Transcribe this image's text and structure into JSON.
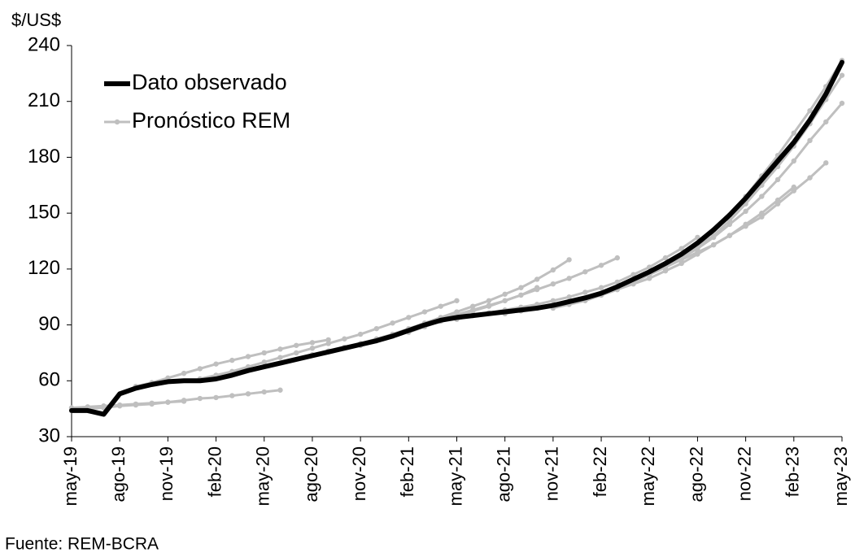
{
  "chart_data": {
    "type": "line",
    "y_label": "$/US$",
    "source": "Fuente: REM-BCRA",
    "legend": "upper left",
    "categories": [
      "may-19",
      null,
      null,
      "ago-19",
      null,
      null,
      "nov-19",
      null,
      null,
      "feb-20",
      null,
      null,
      "may-20",
      null,
      null,
      "ago-20",
      null,
      null,
      "nov-20",
      null,
      null,
      "feb-21",
      null,
      null,
      "may-21",
      null,
      null,
      "ago-21",
      null,
      null,
      "nov-21",
      null,
      null,
      "feb-22",
      null,
      null,
      "may-22",
      null,
      null,
      "ago-22",
      null,
      null,
      "nov-22",
      null,
      null,
      "feb-23",
      null,
      null,
      "may-23"
    ],
    "ylim": [
      30,
      240
    ],
    "yticks": [
      30,
      60,
      90,
      120,
      150,
      180,
      210,
      240
    ],
    "series": [
      {
        "name": "Pronóstico REM",
        "color": "#bfbfbf",
        "values": [
          44,
          45,
          45.5,
          46.5,
          47,
          47.5,
          48.5,
          49.5,
          50.5,
          51,
          52,
          53,
          54,
          55,
          null,
          null,
          null,
          null,
          null,
          null,
          null,
          null,
          null,
          null,
          null,
          null,
          null,
          null,
          null,
          null,
          null,
          null,
          null,
          null,
          null,
          null,
          null,
          null,
          null,
          null,
          null,
          null,
          null,
          null,
          null,
          null,
          null,
          null,
          null
        ]
      },
      {
        "color": "#bfbfbf",
        "values": [
          45.5,
          46,
          46.5,
          47,
          47.5,
          48,
          48.5,
          49,
          null,
          null,
          null,
          null,
          null,
          null,
          null,
          null,
          null,
          null,
          null,
          null,
          null,
          null,
          null,
          null,
          null,
          null,
          null,
          null,
          null,
          null,
          null,
          null,
          null,
          null,
          null,
          null,
          null,
          null,
          null,
          null,
          null,
          null,
          null,
          null,
          null,
          null,
          null,
          null,
          null
        ]
      },
      {
        "color": "#bfbfbf",
        "values": [
          null,
          null,
          null,
          null,
          57,
          59,
          61.5,
          64,
          66.5,
          69,
          71,
          73,
          75,
          77,
          79,
          80.5,
          82,
          null,
          null,
          null,
          null,
          null,
          null,
          null,
          null,
          null,
          null,
          null,
          null,
          null,
          null,
          null,
          null,
          null,
          null,
          null,
          null,
          null,
          null,
          null,
          null,
          null,
          null,
          null,
          null,
          null,
          null,
          null,
          null
        ]
      },
      {
        "color": "#bfbfbf",
        "values": [
          null,
          null,
          null,
          null,
          null,
          null,
          null,
          null,
          61,
          63,
          65,
          67.5,
          70,
          72.5,
          75,
          77.5,
          80,
          82.5,
          85,
          88,
          91,
          94,
          97,
          100,
          103,
          null,
          null,
          null,
          null,
          null,
          null,
          null,
          null,
          null,
          null,
          null,
          null,
          null,
          null,
          null,
          null,
          null,
          null,
          null,
          null,
          null,
          null,
          null,
          null
        ]
      },
      {
        "color": "#bfbfbf",
        "values": [
          null,
          null,
          null,
          null,
          null,
          null,
          null,
          null,
          null,
          null,
          null,
          null,
          null,
          null,
          null,
          74,
          76,
          78,
          80,
          82.5,
          85,
          88,
          91,
          94,
          97,
          100,
          103,
          106.5,
          110,
          114.5,
          119.5,
          125,
          null,
          null,
          null,
          null,
          null,
          null,
          null,
          null,
          null,
          null,
          null,
          null,
          null,
          null,
          null,
          null,
          null
        ]
      },
      {
        "color": "#bfbfbf",
        "values": [
          null,
          null,
          null,
          null,
          null,
          null,
          null,
          null,
          null,
          null,
          null,
          null,
          null,
          null,
          null,
          null,
          null,
          null,
          79,
          81.5,
          84,
          87,
          90,
          93,
          95.5,
          98,
          100.5,
          103,
          106,
          109,
          112,
          115,
          118.5,
          122,
          126,
          null,
          null,
          null,
          null,
          null,
          null,
          null,
          null,
          null,
          null,
          null,
          null,
          null,
          null
        ]
      },
      {
        "color": "#bfbfbf",
        "values": [
          null,
          null,
          null,
          null,
          null,
          null,
          null,
          null,
          null,
          null,
          null,
          null,
          null,
          null,
          null,
          null,
          null,
          null,
          null,
          null,
          null,
          86,
          89,
          92,
          95,
          97.5,
          100,
          103,
          106,
          110,
          null,
          null,
          null,
          null,
          null,
          null,
          null,
          null,
          null,
          null,
          null,
          null,
          null,
          null,
          null,
          null,
          null,
          null,
          null
        ]
      },
      {
        "color": "#bfbfbf",
        "values": [
          null,
          null,
          null,
          null,
          null,
          null,
          null,
          null,
          null,
          null,
          null,
          null,
          null,
          null,
          null,
          null,
          null,
          null,
          null,
          null,
          null,
          null,
          null,
          null,
          93,
          95,
          96.5,
          98,
          99.5,
          101,
          103,
          105,
          107.5,
          110,
          113,
          117,
          121,
          126,
          131,
          137,
          null,
          null,
          null,
          null,
          null,
          null,
          null,
          null,
          null
        ]
      },
      {
        "color": "#bfbfbf",
        "values": [
          null,
          null,
          null,
          null,
          null,
          null,
          null,
          null,
          null,
          null,
          null,
          null,
          null,
          null,
          null,
          null,
          null,
          null,
          null,
          null,
          null,
          null,
          null,
          null,
          null,
          null,
          null,
          96,
          97.5,
          99,
          100.5,
          102,
          104,
          107,
          110,
          113,
          117,
          121,
          125,
          129,
          133,
          138,
          143,
          148,
          155,
          162,
          169,
          177,
          null
        ]
      },
      {
        "color": "#bfbfbf",
        "values": [
          null,
          null,
          null,
          null,
          null,
          null,
          null,
          null,
          null,
          null,
          null,
          null,
          null,
          null,
          null,
          null,
          null,
          null,
          null,
          null,
          null,
          null,
          null,
          null,
          null,
          null,
          null,
          null,
          null,
          null,
          99,
          101,
          103,
          106,
          109,
          112,
          115,
          119,
          123,
          128,
          133,
          138,
          144,
          150,
          157,
          164,
          null,
          null,
          null
        ]
      },
      {
        "color": "#bfbfbf",
        "values": [
          null,
          null,
          null,
          null,
          null,
          null,
          null,
          null,
          null,
          null,
          null,
          null,
          null,
          null,
          null,
          null,
          null,
          null,
          null,
          null,
          null,
          null,
          null,
          null,
          null,
          null,
          null,
          null,
          null,
          null,
          null,
          null,
          null,
          106,
          109,
          113,
          117,
          121,
          126,
          131,
          137,
          144,
          151,
          159,
          168,
          178,
          189,
          199,
          209
        ]
      },
      {
        "color": "#bfbfbf",
        "values": [
          null,
          null,
          null,
          null,
          null,
          null,
          null,
          null,
          null,
          null,
          null,
          null,
          null,
          null,
          null,
          null,
          null,
          null,
          null,
          null,
          null,
          null,
          null,
          null,
          null,
          null,
          null,
          null,
          null,
          null,
          null,
          null,
          null,
          null,
          null,
          null,
          118,
          122,
          127,
          132,
          138,
          146,
          155,
          165,
          175,
          186,
          198,
          211,
          224
        ]
      },
      {
        "color": "#bfbfbf",
        "values": [
          null,
          null,
          null,
          null,
          null,
          null,
          null,
          null,
          null,
          null,
          null,
          null,
          null,
          null,
          null,
          null,
          null,
          null,
          null,
          null,
          null,
          null,
          null,
          null,
          null,
          null,
          null,
          null,
          null,
          null,
          null,
          null,
          null,
          null,
          null,
          null,
          null,
          null,
          null,
          134,
          141,
          149,
          159,
          170,
          181,
          193,
          205,
          218,
          232
        ]
      },
      {
        "name": "Dato observado",
        "color": "#000000",
        "values": [
          44,
          44,
          42,
          53,
          56,
          58,
          59.5,
          60,
          60,
          61,
          63,
          65.5,
          67.5,
          69.5,
          71.5,
          73.5,
          75.5,
          77.5,
          79.5,
          81.5,
          84,
          87,
          90,
          92.5,
          94,
          95,
          96,
          97,
          98,
          99,
          100.5,
          102.5,
          104.5,
          107,
          110.5,
          114.5,
          118.5,
          123,
          128,
          134,
          141,
          149,
          158,
          168,
          178,
          188,
          200,
          214,
          231
        ]
      }
    ]
  }
}
